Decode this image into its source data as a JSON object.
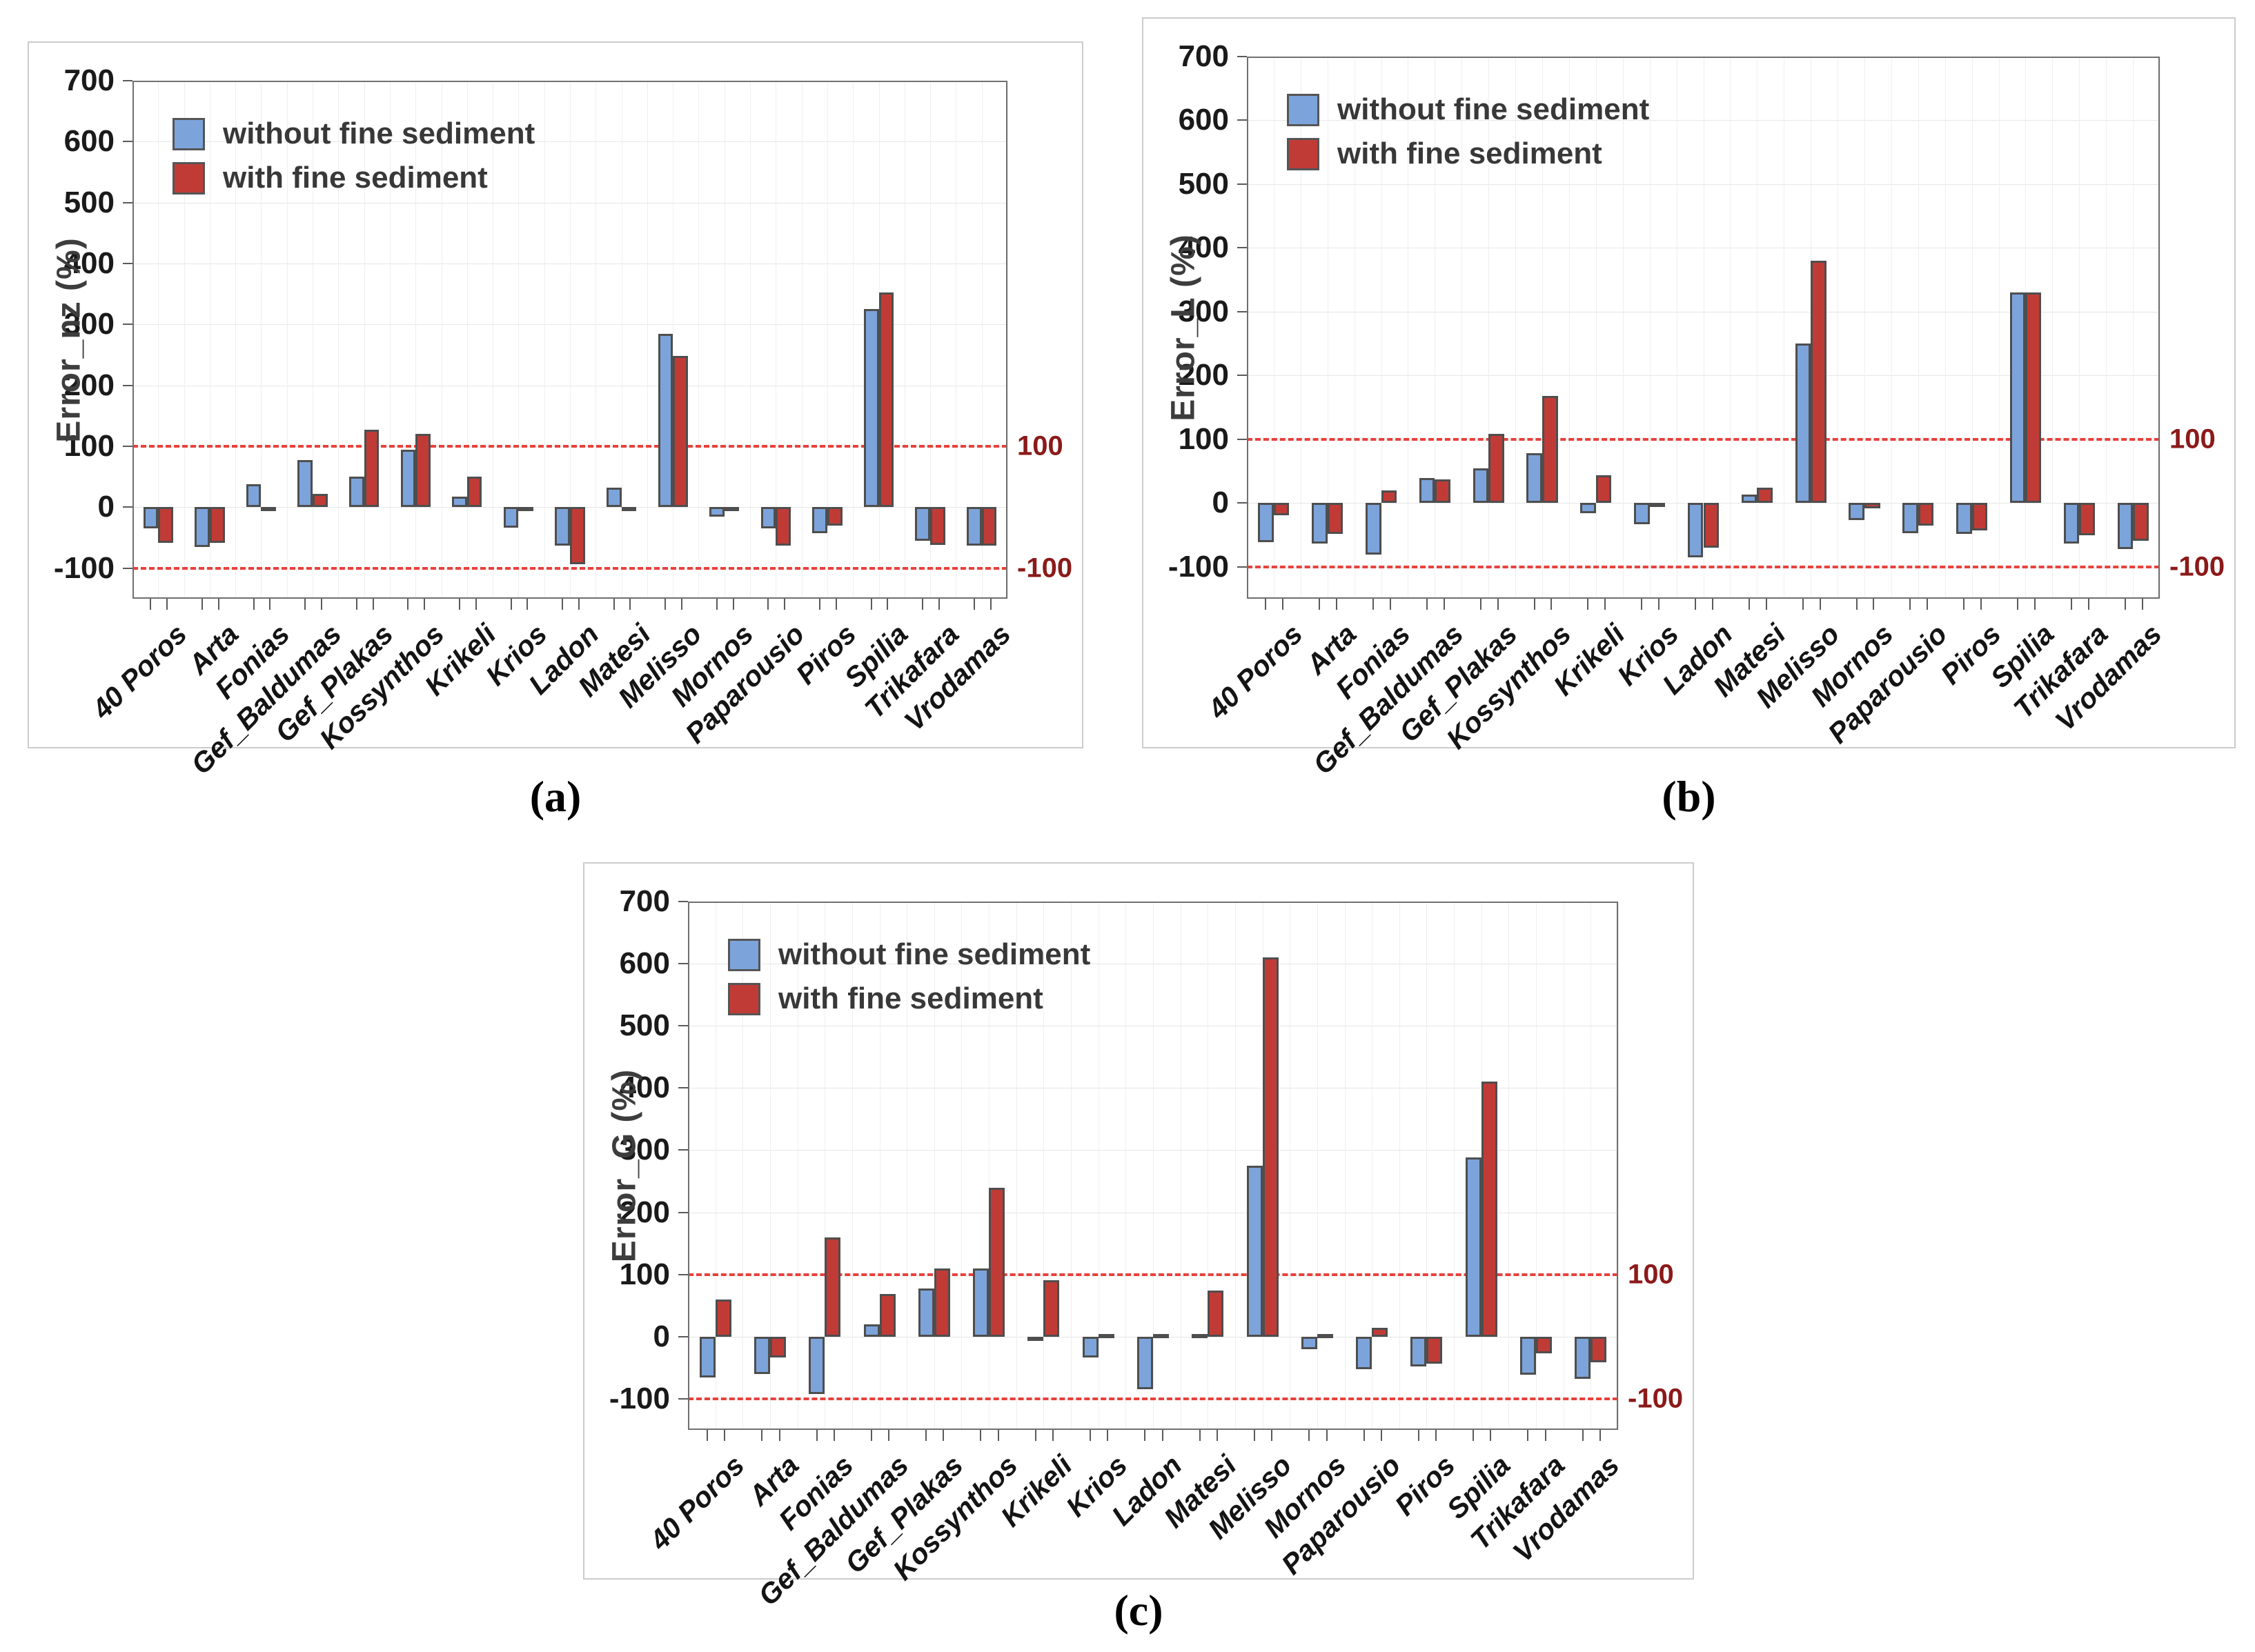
{
  "figure": {
    "background": "#ffffff",
    "captions": {
      "a": "(a)",
      "b": "(b)",
      "c": "(c)"
    }
  },
  "legend": {
    "items": [
      {
        "label": "without fine sediment",
        "color": "#7ca4db"
      },
      {
        "label": "with fine sediment",
        "color": "#c13b36"
      }
    ]
  },
  "style": {
    "bar_without": "#7ca4db",
    "bar_with": "#c13b36",
    "bar_border": "#4e4e4e",
    "dashed_line": "#e8413c",
    "dashed_label": "#8b1a1a",
    "grid": "#e6e6e6",
    "frame": "#6f6f6f"
  },
  "chart_data": [
    {
      "type": "bar",
      "caption": "(a)",
      "ylabel": "Error_nz (%)",
      "xlabel": "",
      "ylim": [
        -150,
        700
      ],
      "yticks": [
        700,
        600,
        500,
        400,
        300,
        200,
        100,
        0,
        -100
      ],
      "grid": true,
      "legend_position": "top-left",
      "ref_lines": [
        {
          "y": 100,
          "label": "100"
        },
        {
          "y": -100,
          "label": "-100"
        }
      ],
      "categories": [
        "40 Poros",
        "Arta",
        "Fonias",
        "Gef_Baldumas",
        "Gef_Plakas",
        "Kossynthos",
        "Krikeli",
        "Krios",
        "Ladon",
        "Matesi",
        "Melisso",
        "Mornos",
        "Paparousio",
        "Piros",
        "Spilia",
        "Trikafara",
        "Vrodamas"
      ],
      "series": [
        {
          "name": "without fine sediment",
          "values": [
            -35,
            -65,
            38,
            78,
            50,
            95,
            17,
            -33,
            -63,
            32,
            285,
            -15,
            -35,
            -42,
            325,
            -55,
            -63
          ]
        },
        {
          "name": "with fine sediment",
          "values": [
            -58,
            -58,
            -3,
            22,
            127,
            120,
            50,
            -3,
            -93,
            -3,
            248,
            -5,
            -63,
            -30,
            353,
            -62,
            -63
          ]
        }
      ]
    },
    {
      "type": "bar",
      "caption": "(b)",
      "ylabel": "Error_L (%)",
      "xlabel": "",
      "ylim": [
        -150,
        700
      ],
      "yticks": [
        700,
        600,
        500,
        400,
        300,
        200,
        100,
        0,
        -100
      ],
      "grid": true,
      "legend_position": "top-left",
      "ref_lines": [
        {
          "y": 100,
          "label": "100"
        },
        {
          "y": -100,
          "label": "-100"
        }
      ],
      "categories": [
        "40 Poros",
        "Arta",
        "Fonias",
        "Gef_Baldumas",
        "Gef_Plakas",
        "Kossynthos",
        "Krikeli",
        "Krios",
        "Ladon",
        "Matesi",
        "Melisso",
        "Mornos",
        "Paparousio",
        "Piros",
        "Spilia",
        "Trikafara",
        "Vrodamas"
      ],
      "series": [
        {
          "name": "without fine sediment",
          "values": [
            -61,
            -64,
            -81,
            39,
            54,
            78,
            -16,
            -33,
            -85,
            13,
            250,
            -27,
            -47,
            -48,
            330,
            -64,
            -72
          ]
        },
        {
          "name": "with fine sediment",
          "values": [
            -19,
            -48,
            20,
            37,
            109,
            168,
            44,
            -2,
            -70,
            24,
            380,
            -8,
            -35,
            -43,
            330,
            -50,
            -59
          ]
        }
      ]
    },
    {
      "type": "bar",
      "caption": "(c)",
      "ylabel": "Error_G (%)",
      "xlabel": "",
      "ylim": [
        -150,
        700
      ],
      "yticks": [
        700,
        600,
        500,
        400,
        300,
        200,
        100,
        0,
        -100
      ],
      "grid": true,
      "legend_position": "top-left",
      "ref_lines": [
        {
          "y": 100,
          "label": "100"
        },
        {
          "y": -100,
          "label": "-100"
        }
      ],
      "categories": [
        "40 Poros",
        "Arta",
        "Fonias",
        "Gef_Baldumas",
        "Gef_Plakas",
        "Kossynthos",
        "Krikeli",
        "Krios",
        "Ladon",
        "Matesi",
        "Melisso",
        "Mornos",
        "Paparousio",
        "Piros",
        "Spilia",
        "Trikafara",
        "Vrodamas"
      ],
      "series": [
        {
          "name": "without fine sediment",
          "values": [
            -66,
            -60,
            -92,
            20,
            78,
            110,
            -5,
            -33,
            -85,
            4,
            275,
            -20,
            -52,
            -48,
            288,
            -61,
            -68
          ]
        },
        {
          "name": "with fine sediment",
          "values": [
            60,
            -34,
            160,
            69,
            110,
            240,
            91,
            3,
            4,
            74,
            610,
            2,
            14,
            -44,
            410,
            -27,
            -41
          ]
        }
      ]
    }
  ]
}
